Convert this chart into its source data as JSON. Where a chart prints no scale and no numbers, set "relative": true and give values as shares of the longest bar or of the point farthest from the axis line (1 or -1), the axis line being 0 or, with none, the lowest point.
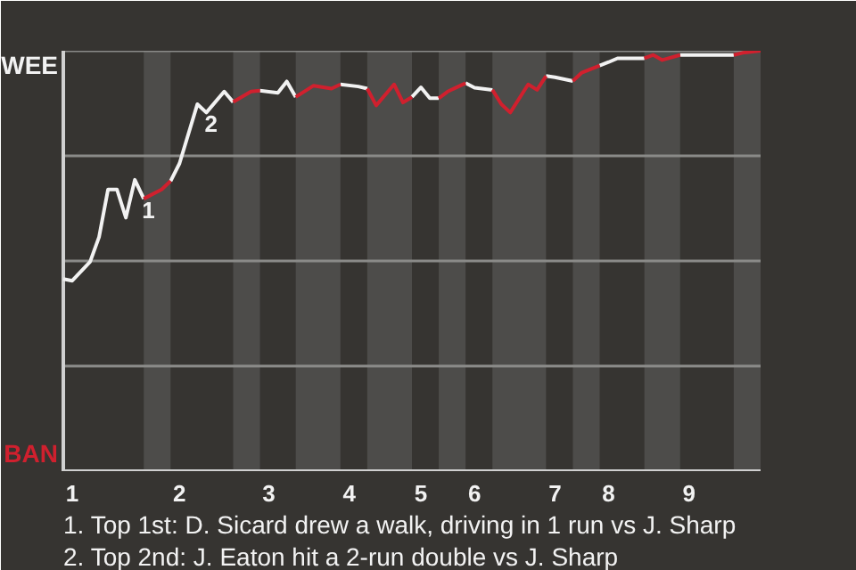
{
  "chart_data": {
    "type": "line",
    "relative": true,
    "categories": [
      null,
      "1",
      null,
      null,
      null,
      null,
      null,
      null,
      null,
      null,
      null,
      null,
      null,
      "2",
      null,
      null,
      null,
      null,
      null,
      null,
      null,
      null,
      null,
      "3",
      null,
      null,
      null,
      null,
      null,
      null,
      null,
      null,
      "4",
      null,
      null,
      null,
      null,
      null,
      null,
      null,
      "5",
      null,
      null,
      null,
      null,
      null,
      "6",
      null,
      null,
      null,
      null,
      null,
      null,
      null,
      null,
      "7",
      null,
      null,
      null,
      null,
      null,
      "8",
      null,
      null,
      null,
      null,
      null,
      null,
      null,
      null,
      "9",
      null,
      null,
      null,
      null,
      null,
      null,
      null,
      null
    ],
    "series": [
      {
        "color": "#f2f2f2",
        "values": [
          0.457,
          0.453,
          null,
          0.498,
          0.557,
          0.67,
          0.67,
          0.603,
          0.693,
          0.648,
          null,
          null,
          0.69,
          0.732,
          null,
          0.873,
          0.853,
          null,
          0.903,
          0.878,
          null,
          null,
          0.905,
          null,
          0.9,
          0.927,
          0.89,
          null,
          null,
          null,
          null,
          0.92,
          null,
          0.915,
          0.91,
          null,
          null,
          null,
          null,
          0.89,
          0.913,
          0.887,
          0.887,
          null,
          null,
          0.923,
          0.912,
          null,
          0.907,
          null,
          null,
          null,
          null,
          null,
          0.94,
          0.937,
          null,
          0.928,
          null,
          null,
          0.965,
          0.973,
          0.982,
          null,
          null,
          0.982,
          null,
          null,
          null,
          0.99,
          null,
          null,
          0.99,
          null,
          null,
          0.99,
          null,
          null,
          null
        ]
      },
      {
        "color": "#d0202e",
        "values": [
          null,
          null,
          null,
          null,
          null,
          null,
          null,
          null,
          null,
          0.648,
          null,
          0.67,
          0.69,
          null,
          null,
          null,
          null,
          null,
          null,
          0.878,
          null,
          0.903,
          0.905,
          null,
          null,
          null,
          0.89,
          null,
          0.917,
          null,
          0.91,
          0.92,
          null,
          null,
          0.91,
          0.87,
          null,
          0.92,
          0.877,
          0.89,
          null,
          null,
          0.887,
          0.903,
          null,
          0.923,
          null,
          null,
          0.907,
          0.873,
          0.853,
          null,
          0.92,
          0.907,
          0.94,
          null,
          null,
          0.928,
          0.948,
          null,
          0.965,
          null,
          null,
          null,
          null,
          0.982,
          0.99,
          0.978,
          null,
          0.99,
          null,
          null,
          null,
          null,
          null,
          0.99,
          0.995,
          null,
          1
        ]
      }
    ],
    "line_style": "solid",
    "ref_lines": [
      {
        "axis": "y",
        "value": 0.25,
        "color": "#8a8a88"
      },
      {
        "axis": "y",
        "value": 0.5,
        "color": "#8a8a88"
      },
      {
        "axis": "y",
        "value": 0.75,
        "color": "#8a8a88"
      },
      {
        "axis": "y",
        "value": 1,
        "color": "#8a8a88"
      }
    ],
    "annotations": [
      "WEE",
      "BAN",
      {
        "text": "1",
        "y": 0.648
      },
      {
        "text": "2",
        "y": 0.853
      },
      "1. Top 1st: D. Sicard drew a walk, driving in 1 run vs J. Sharp",
      "2. Top 2nd: J. Eaton hit a 2-run double vs J. Sharp"
    ]
  }
}
